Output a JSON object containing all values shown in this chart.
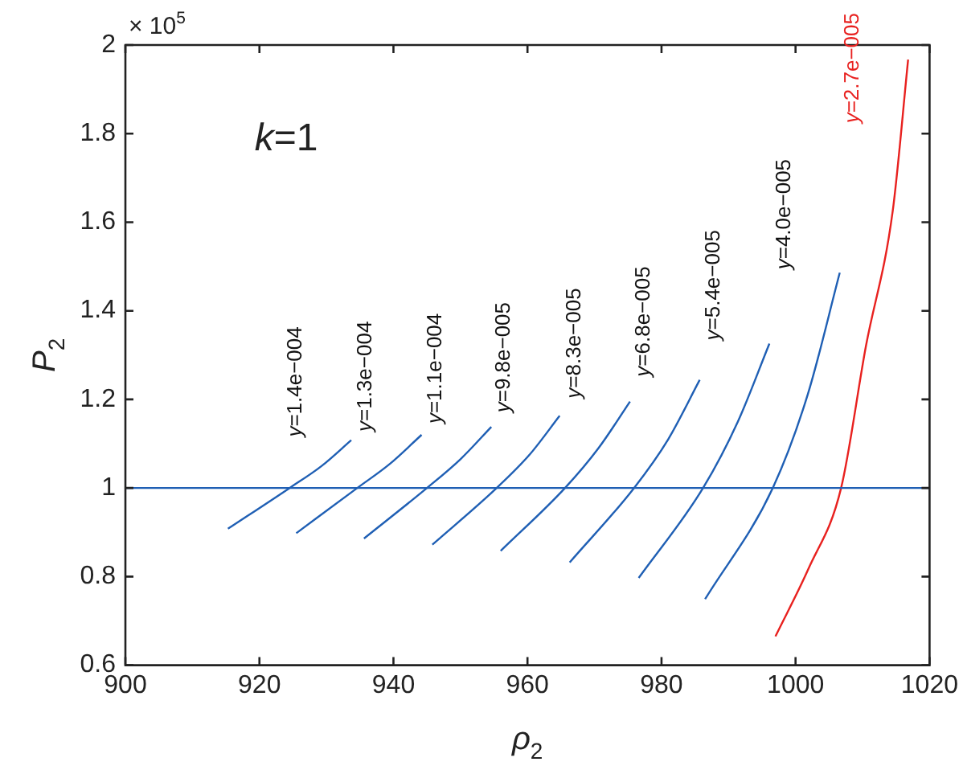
{
  "chart_data": {
    "type": "line",
    "xlabel": "ρ$_{2}$",
    "ylabel": "P$_{2}$",
    "xlim": [
      900,
      1020
    ],
    "xticks": [
      900,
      920,
      940,
      960,
      980,
      1000,
      1020
    ],
    "ylim": [
      0.6,
      2
    ],
    "yticks": [
      0.6,
      0.8,
      1,
      1.2,
      1.4,
      1.6,
      1.8,
      2
    ],
    "legend": false,
    "marker": "none",
    "line_style": "solid",
    "series": [
      {
        "color": "#1f5fb4",
        "x": [
          915.3,
          924.5,
          929.3,
          933.7
        ],
        "values": [
          0.908,
          1,
          1.05,
          1.108
        ]
      },
      {
        "color": "#1f5fb4",
        "x": [
          925.5,
          934.6,
          939.5,
          944.2
        ],
        "values": [
          0.898,
          1,
          1.055,
          1.12
        ]
      },
      {
        "color": "#1f5fb4",
        "x": [
          935.6,
          945,
          950,
          954.6
        ],
        "values": [
          0.886,
          1,
          1.065,
          1.138
        ]
      },
      {
        "color": "#1f5fb4",
        "x": [
          945.8,
          955.4,
          960.3,
          964.8
        ],
        "values": [
          0.872,
          1,
          1.075,
          1.163
        ]
      },
      {
        "color": "#1f5fb4",
        "x": [
          956,
          965.6,
          970.6,
          975.3
        ],
        "values": [
          0.858,
          1,
          1.09,
          1.195
        ]
      },
      {
        "color": "#1f5fb4",
        "x": [
          966.3,
          975.9,
          981,
          985.7
        ],
        "values": [
          0.832,
          1,
          1.11,
          1.244
        ]
      },
      {
        "color": "#1f5fb4",
        "x": [
          976.6,
          986.2,
          991.4,
          996.1
        ],
        "values": [
          0.797,
          1,
          1.15,
          1.326
        ]
      },
      {
        "color": "#1f5fb4",
        "x": [
          986.5,
          996.6,
          1001.8,
          1006.6
        ],
        "values": [
          0.749,
          1,
          1.21,
          1.486
        ]
      },
      {
        "color": "#e8211f",
        "x": [
          997,
          1002,
          1006.8,
          1010.5,
          1014.5,
          1016.8
        ],
        "values": [
          0.665,
          0.82,
          1,
          1.32,
          1.625,
          1.967
        ]
      }
    ],
    "ref_lines": [
      {
        "axis": "y",
        "value": 1,
        "color": "#1f5fb4"
      }
    ],
    "annotations": [
      "× 10$^{5}$",
      "k=1",
      "y=1.4e−004",
      "y=1.3e−004",
      "y=1.1e−004",
      "y=9.8e−005",
      "y=8.3e−005",
      "y=6.8e−005",
      "y=5.4e−005",
      "y=4.0e−005",
      "y=2.7e−005"
    ]
  }
}
